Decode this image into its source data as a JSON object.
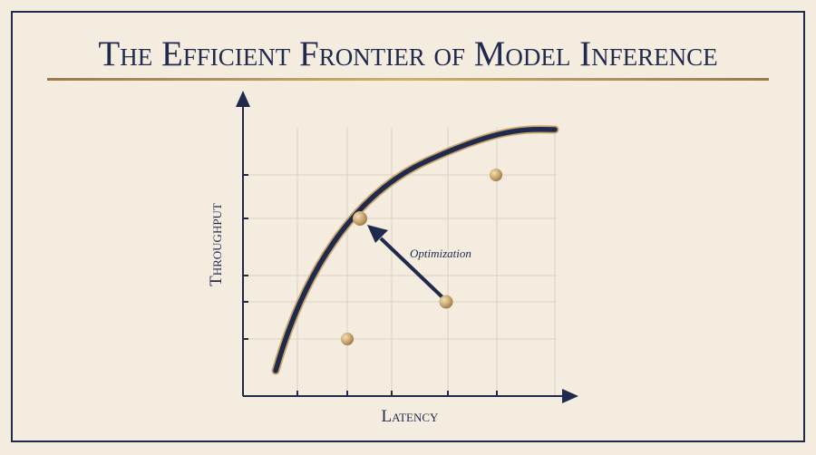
{
  "header": {
    "title": "The Efficient Frontier of Model Inference"
  },
  "diagram": {
    "x_label": "Latency",
    "y_label": "Throughput",
    "annotation": "Optimization"
  }
}
